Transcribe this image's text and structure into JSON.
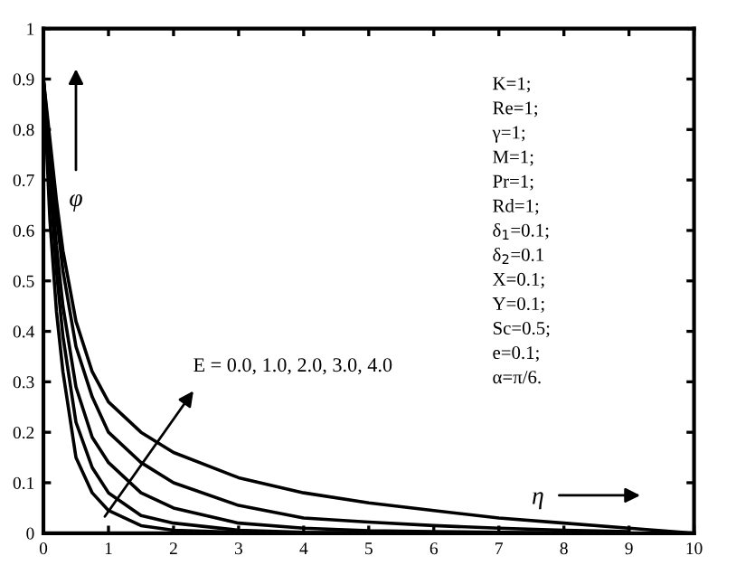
{
  "chart_data": {
    "type": "line",
    "xlabel": "η",
    "ylabel": "φ",
    "series": [
      {
        "color": "#000000",
        "x": [
          0,
          0.1,
          0.2,
          0.3,
          0.5,
          0.75,
          1,
          1.5,
          2,
          3,
          4,
          5,
          6
        ],
        "values": [
          0.9,
          0.62,
          0.44,
          0.32,
          0.15,
          0.08,
          0.045,
          0.015,
          0.006,
          0.002,
          0.001,
          0,
          0
        ]
      },
      {
        "color": "#000000",
        "x": [
          0,
          0.1,
          0.2,
          0.3,
          0.5,
          0.75,
          1,
          1.5,
          2,
          3,
          4,
          5,
          6,
          7
        ],
        "values": [
          0.9,
          0.7,
          0.52,
          0.39,
          0.22,
          0.13,
          0.08,
          0.035,
          0.02,
          0.006,
          0.002,
          0.001,
          0,
          0
        ]
      },
      {
        "color": "#000000",
        "x": [
          0,
          0.1,
          0.2,
          0.3,
          0.5,
          0.75,
          1,
          1.5,
          2,
          3,
          4,
          5,
          6,
          7,
          8
        ],
        "values": [
          0.9,
          0.73,
          0.57,
          0.45,
          0.29,
          0.19,
          0.14,
          0.08,
          0.05,
          0.02,
          0.01,
          0.005,
          0.003,
          0.002,
          0.001
        ]
      },
      {
        "color": "#000000",
        "x": [
          0,
          0.1,
          0.2,
          0.3,
          0.5,
          0.75,
          1,
          1.5,
          2,
          3,
          4,
          5,
          6,
          7,
          8,
          9
        ],
        "values": [
          0.9,
          0.76,
          0.63,
          0.52,
          0.37,
          0.27,
          0.2,
          0.14,
          0.1,
          0.055,
          0.03,
          0.022,
          0.015,
          0.01,
          0.006,
          0.003
        ]
      },
      {
        "color": "#000000",
        "x": [
          0,
          0.1,
          0.2,
          0.3,
          0.5,
          0.75,
          1,
          1.5,
          2,
          3,
          4,
          5,
          6,
          7,
          8,
          9,
          10
        ],
        "values": [
          0.9,
          0.78,
          0.66,
          0.56,
          0.42,
          0.32,
          0.26,
          0.2,
          0.16,
          0.11,
          0.08,
          0.06,
          0.045,
          0.03,
          0.02,
          0.01,
          0
        ]
      }
    ],
    "xlim": [
      0,
      10
    ],
    "ylim": [
      0,
      1
    ],
    "xticks": [
      0,
      1,
      2,
      3,
      4,
      5,
      6,
      7,
      8,
      9,
      10
    ],
    "yticks": [
      0,
      0.1,
      0.2,
      0.3,
      0.4,
      0.5,
      0.6,
      0.7,
      0.8,
      0.9,
      1
    ],
    "grid": false,
    "legend": false,
    "line_style": "solid",
    "marker": "none",
    "annotations": [
      "E = 0.0, 1.0, 2.0, 3.0, 4.0",
      "K=1;",
      "Re=1;",
      "γ=1;",
      "M=1;",
      "Pr=1;",
      "Rd=1;",
      "δ$_{1}$=0.1;",
      "δ$_{2}$=0.1",
      "X=0.1;",
      "Y=0.1;",
      "Sc=0.5;",
      "e=0.1;",
      "α=π/6."
    ]
  }
}
